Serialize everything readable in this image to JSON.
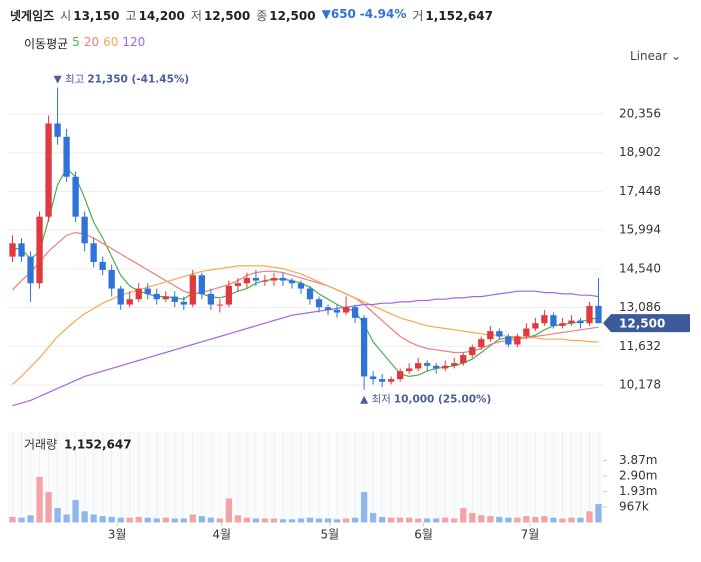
{
  "header": {
    "name": "넷게임즈",
    "items": [
      {
        "label": "시",
        "value": "13,150"
      },
      {
        "label": "고",
        "value": "14,200"
      },
      {
        "label": "저",
        "value": "12,500"
      },
      {
        "label": "종",
        "value": "12,500"
      }
    ],
    "change": "650",
    "change_pct": "-4.94%",
    "volume_label": "거",
    "volume_value": "1,152,647"
  },
  "chart_data": {
    "type": "candlestick",
    "up_color": "#e0393e",
    "down_color": "#2f73d8",
    "grid": true,
    "scale": "Linear",
    "open": [
      15000,
      15500,
      15000,
      14000,
      16500,
      20000,
      19500,
      18000,
      16500,
      15500,
      14800,
      14500,
      13800,
      13200,
      13400,
      13800,
      13600,
      13400,
      13500,
      13300,
      13200,
      14300,
      13600,
      13200,
      13200,
      13900,
      14000,
      14200,
      14100,
      14100,
      14200,
      14100,
      14000,
      13800,
      13400,
      13100,
      13000,
      12900,
      13100,
      12700,
      10500,
      10400,
      10300,
      10400,
      10700,
      10800,
      11000,
      10900,
      10800,
      10900,
      11000,
      11300,
      11600,
      11900,
      12200,
      12000,
      11700,
      12000,
      12300,
      12500,
      12800,
      12400,
      12500,
      12600,
      12500,
      13150
    ],
    "high": [
      15800,
      15700,
      15200,
      16700,
      20300,
      21350,
      19800,
      18200,
      16700,
      15700,
      15000,
      14700,
      13900,
      13700,
      14000,
      14000,
      13800,
      13700,
      13700,
      13500,
      14500,
      14400,
      13800,
      13400,
      14100,
      14200,
      14400,
      14500,
      14300,
      14400,
      14400,
      14200,
      14100,
      13900,
      13500,
      13200,
      13200,
      13500,
      13200,
      12800,
      10700,
      10600,
      10500,
      10800,
      11000,
      11200,
      11100,
      11000,
      11100,
      11200,
      11400,
      11700,
      12000,
      12400,
      12300,
      12100,
      12100,
      12500,
      12700,
      13000,
      12900,
      12700,
      12800,
      12700,
      13300,
      14200
    ],
    "low": [
      14800,
      14800,
      13300,
      13800,
      16300,
      19200,
      17800,
      16300,
      15200,
      14600,
      14300,
      13500,
      13000,
      13100,
      13300,
      13400,
      13200,
      13300,
      13100,
      13000,
      13100,
      13400,
      13000,
      12900,
      13100,
      13700,
      13800,
      13900,
      13900,
      13900,
      13900,
      13800,
      13600,
      13200,
      12900,
      12800,
      12700,
      12800,
      12500,
      10000,
      10200,
      10100,
      10200,
      10300,
      10600,
      10700,
      10700,
      10600,
      10700,
      10800,
      10900,
      11200,
      11500,
      11800,
      11900,
      11600,
      11600,
      11900,
      12200,
      12400,
      12300,
      12300,
      12400,
      12300,
      12400,
      12500
    ],
    "close": [
      15500,
      15000,
      14000,
      16500,
      20000,
      19500,
      18000,
      16500,
      15500,
      14800,
      14500,
      13800,
      13200,
      13400,
      13800,
      13600,
      13400,
      13500,
      13300,
      13200,
      14300,
      13600,
      13200,
      13200,
      13900,
      14000,
      14200,
      14100,
      14100,
      14200,
      14100,
      14000,
      13800,
      13400,
      13100,
      13000,
      12900,
      13100,
      12700,
      10500,
      10400,
      10300,
      10400,
      10700,
      10800,
      11000,
      10900,
      10800,
      10900,
      11000,
      11300,
      11600,
      11900,
      12200,
      12000,
      11700,
      12000,
      12300,
      12500,
      12800,
      12400,
      12500,
      12600,
      12500,
      13150,
      12500
    ],
    "ylim": [
      8676,
      22309
    ],
    "yticks": [
      {
        "value": 10178,
        "label": "10,178"
      },
      {
        "value": 11632,
        "label": "11,632"
      },
      {
        "value": 13086,
        "label": "13,086"
      },
      {
        "value": 14540,
        "label": "14,540"
      },
      {
        "value": 15994,
        "label": "15,994"
      },
      {
        "value": 17448,
        "label": "17,448"
      },
      {
        "value": 18902,
        "label": "18,902"
      },
      {
        "value": 20356,
        "label": "20,356"
      }
    ],
    "xticks": [
      {
        "value": 11.6,
        "label": "3월"
      },
      {
        "value": 23.2,
        "label": "4월"
      },
      {
        "value": 35.2,
        "label": "5월"
      },
      {
        "value": 45.6,
        "label": "6월"
      },
      {
        "value": 57.4,
        "label": "7월"
      }
    ],
    "legend_title": "이동평균",
    "moving_averages": [
      {
        "name": "5",
        "color": "#4caf50",
        "values": [
          15300,
          15300,
          14900,
          15200,
          16400,
          17700,
          18300,
          18000,
          17200,
          16300,
          15700,
          15000,
          14300,
          13900,
          13700,
          13600,
          13500,
          13500,
          13450,
          13400,
          13650,
          13600,
          13500,
          13450,
          13550,
          13700,
          13800,
          14000,
          14100,
          14150,
          14150,
          14100,
          14000,
          13850,
          13600,
          13400,
          13200,
          13050,
          12950,
          12450,
          11800,
          11400,
          11000,
          10600,
          10500,
          10550,
          10700,
          10800,
          10850,
          10900,
          11000,
          11150,
          11400,
          11650,
          11900,
          11950,
          11950,
          11950,
          12050,
          12250,
          12400,
          12450,
          12500,
          12550,
          12650,
          12700
        ]
      },
      {
        "name": "20",
        "color": "#f07f7f",
        "values": [
          13750,
          14100,
          14400,
          14800,
          15200,
          15500,
          15800,
          15900,
          15850,
          15700,
          15500,
          15300,
          15100,
          14900,
          14700,
          14500,
          14300,
          14100,
          13900,
          13700,
          13600,
          13650,
          13750,
          13850,
          13950,
          14100,
          14300,
          14400,
          14450,
          14450,
          14400,
          14300,
          14200,
          14100,
          14000,
          13900,
          13750,
          13600,
          13450,
          13200,
          12900,
          12600,
          12300,
          12000,
          11800,
          11650,
          11550,
          11500,
          11450,
          11400,
          11400,
          11450,
          11550,
          11700,
          11800,
          11850,
          11900,
          11950,
          12000,
          12050,
          12100,
          12150,
          12200,
          12250,
          12300,
          12350
        ]
      },
      {
        "name": "60",
        "color": "#f5a855",
        "values": [
          10200,
          10500,
          10850,
          11200,
          11600,
          12000,
          12300,
          12600,
          12850,
          13050,
          13250,
          13400,
          13550,
          13650,
          13750,
          13850,
          13950,
          14050,
          14150,
          14250,
          14350,
          14450,
          14500,
          14550,
          14600,
          14650,
          14650,
          14650,
          14650,
          14600,
          14550,
          14450,
          14350,
          14200,
          14050,
          13900,
          13750,
          13600,
          13450,
          13300,
          13150,
          13000,
          12850,
          12700,
          12600,
          12500,
          12400,
          12350,
          12300,
          12250,
          12200,
          12150,
          12100,
          12050,
          12050,
          12000,
          12000,
          11950,
          11950,
          11900,
          11900,
          11900,
          11850,
          11850,
          11800,
          11800
        ]
      },
      {
        "name": "120",
        "color": "#a366e8",
        "values": [
          9400,
          9500,
          9600,
          9750,
          9900,
          10050,
          10200,
          10350,
          10500,
          10600,
          10700,
          10800,
          10900,
          11000,
          11100,
          11200,
          11300,
          11400,
          11500,
          11600,
          11700,
          11800,
          11900,
          12000,
          12100,
          12200,
          12300,
          12400,
          12500,
          12600,
          12700,
          12800,
          12850,
          12900,
          12950,
          13000,
          13050,
          13100,
          13150,
          13200,
          13200,
          13250,
          13250,
          13300,
          13300,
          13350,
          13350,
          13400,
          13400,
          13450,
          13450,
          13500,
          13500,
          13550,
          13600,
          13650,
          13700,
          13700,
          13700,
          13650,
          13650,
          13600,
          13600,
          13550,
          13550,
          13500
        ]
      }
    ],
    "current_price": {
      "value": 12500,
      "label": "12,500"
    },
    "high_annotation": {
      "label": "최고",
      "text": "21,350 (-41.45%)"
    },
    "low_annotation": {
      "label": "최저",
      "text": "10,000 (25.00%)"
    },
    "volume": {
      "title": "거래량",
      "last_label": "1,152,647",
      "values": [
        350000,
        300000,
        450000,
        2850000,
        1900000,
        900000,
        500000,
        1400000,
        700000,
        500000,
        400000,
        350000,
        300000,
        300000,
        350000,
        300000,
        250000,
        300000,
        250000,
        250000,
        500000,
        400000,
        300000,
        250000,
        1500000,
        450000,
        300000,
        250000,
        250000,
        250000,
        200000,
        200000,
        250000,
        300000,
        250000,
        250000,
        200000,
        250000,
        300000,
        1900000,
        600000,
        350000,
        300000,
        300000,
        300000,
        250000,
        250000,
        250000,
        300000,
        250000,
        900000,
        600000,
        450000,
        400000,
        350000,
        300000,
        300000,
        400000,
        350000,
        400000,
        300000,
        250000,
        300000,
        300000,
        700000,
        1152647
      ],
      "ylim": [
        0,
        5650000
      ],
      "yticks": [
        {
          "value": 967000,
          "label": "967k"
        },
        {
          "value": 1930000,
          "label": "1.93m"
        },
        {
          "value": 2900000,
          "label": "2.90m"
        },
        {
          "value": 3870000,
          "label": "3.87m"
        }
      ]
    }
  }
}
